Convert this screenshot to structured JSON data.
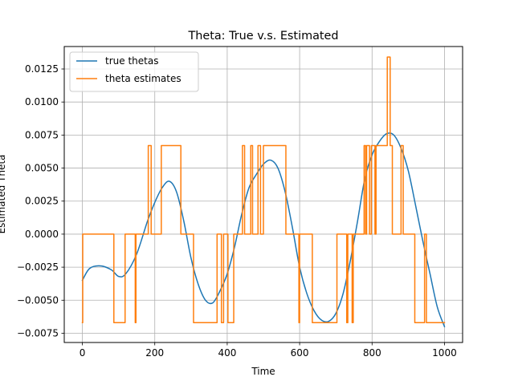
{
  "chart_data": {
    "type": "line",
    "title": "Theta: True v.s. Estimated",
    "xlabel": "Time",
    "ylabel": "Estimated Theta",
    "xlim": [
      -50,
      1050
    ],
    "ylim": [
      -0.0082,
      0.0142
    ],
    "xticks": [
      0,
      200,
      400,
      600,
      800,
      1000
    ],
    "xtick_labels": [
      "0",
      "200",
      "400",
      "600",
      "800",
      "1000"
    ],
    "yticks": [
      -0.0075,
      -0.005,
      -0.0025,
      0.0,
      0.0025,
      0.005,
      0.0075,
      0.01,
      0.0125
    ],
    "ytick_labels": [
      "−0.0075",
      "−0.0050",
      "−0.0025",
      "0.0000",
      "0.0025",
      "0.0050",
      "0.0075",
      "0.0100",
      "0.0125"
    ],
    "grid": true,
    "legend_position": "top-left",
    "series": [
      {
        "name": "true thetas",
        "color": "#1f77b4",
        "style": "smooth",
        "x": [
          0,
          20,
          50,
          80,
          100,
          120,
          150,
          180,
          200,
          220,
          240,
          260,
          280,
          300,
          320,
          340,
          360,
          380,
          400,
          420,
          440,
          460,
          480,
          500,
          520,
          540,
          560,
          580,
          600,
          620,
          640,
          660,
          680,
          700,
          720,
          740,
          760,
          780,
          800,
          820,
          840,
          860,
          880,
          900,
          920,
          940,
          960,
          980,
          1000
        ],
        "y": [
          -0.0035,
          -0.0026,
          -0.0024,
          -0.0027,
          -0.0032,
          -0.003,
          -0.0015,
          0.001,
          0.0024,
          0.0035,
          0.004,
          0.0032,
          0.001,
          -0.0018,
          -0.0038,
          -0.005,
          -0.0052,
          -0.0043,
          -0.003,
          -0.001,
          0.0015,
          0.0035,
          0.0045,
          0.0053,
          0.0056,
          0.005,
          0.0032,
          0.0005,
          -0.0025,
          -0.0045,
          -0.0058,
          -0.0065,
          -0.0066,
          -0.006,
          -0.0045,
          -0.002,
          0.001,
          0.0042,
          0.006,
          0.007,
          0.0076,
          0.0075,
          0.0065,
          0.0048,
          0.0022,
          -0.0005,
          -0.003,
          -0.0055,
          -0.007
        ]
      },
      {
        "name": "theta estimates",
        "color": "#ff7f0e",
        "style": "steps",
        "x": [
          0,
          1,
          1,
          3,
          3,
          87,
          87,
          118,
          118,
          146,
          146,
          148,
          148,
          150,
          150,
          182,
          182,
          190,
          190,
          218,
          218,
          272,
          272,
          307,
          307,
          372,
          372,
          384,
          384,
          390,
          390,
          402,
          402,
          418,
          418,
          423,
          423,
          442,
          442,
          448,
          448,
          465,
          465,
          470,
          470,
          485,
          485,
          492,
          492,
          500,
          500,
          562,
          562,
          598,
          598,
          600,
          600,
          635,
          635,
          700,
          700,
          703,
          703,
          730,
          730,
          733,
          733,
          745,
          745,
          748,
          748,
          762,
          762,
          778,
          778,
          782,
          782,
          785,
          785,
          793,
          793,
          798,
          798,
          808,
          808,
          811,
          811,
          842,
          842,
          850,
          850,
          856,
          856,
          880,
          880,
          886,
          886,
          918,
          918,
          945,
          945,
          950,
          950,
          962,
          962,
          1000
        ],
        "y": [
          -0.0067,
          -0.0067,
          0.0,
          0.0,
          0.0,
          0.0,
          -0.0067,
          -0.0067,
          0.0,
          0.0,
          -0.0067,
          -0.0067,
          0.0,
          0.0,
          0.0,
          0.0,
          0.0067,
          0.0067,
          0.0,
          0.0,
          0.0067,
          0.0067,
          0.0,
          0.0,
          -0.0067,
          -0.0067,
          0.0,
          0.0,
          -0.0067,
          -0.0067,
          0.0,
          0.0,
          -0.0067,
          -0.0067,
          0.0,
          0.0,
          0.0,
          0.0,
          0.0067,
          0.0067,
          0.0,
          0.0,
          0.0067,
          0.0067,
          0.0,
          0.0,
          0.0067,
          0.0067,
          0.0,
          0.0,
          0.0067,
          0.0067,
          0.0,
          0.0,
          -0.0067,
          -0.0067,
          0.0,
          0.0,
          -0.0067,
          -0.0067,
          -0.0067,
          -0.0067,
          0.0,
          0.0,
          -0.0067,
          -0.0067,
          0.0,
          0.0,
          -0.0067,
          -0.0067,
          0.0,
          0.0,
          0.0,
          0.0,
          0.0067,
          0.0067,
          0.0,
          0.0,
          0.0067,
          0.0067,
          0.0,
          0.0,
          0.0067,
          0.0067,
          0.0,
          0.0,
          0.0067,
          0.0067,
          0.0134,
          0.0134,
          0.0067,
          0.0067,
          0.0,
          0.0,
          0.0067,
          0.0067,
          0.0,
          0.0,
          -0.0067,
          -0.0067,
          0.0,
          0.0,
          -0.0067,
          -0.0067,
          -0.0067,
          -0.0067
        ]
      }
    ]
  }
}
